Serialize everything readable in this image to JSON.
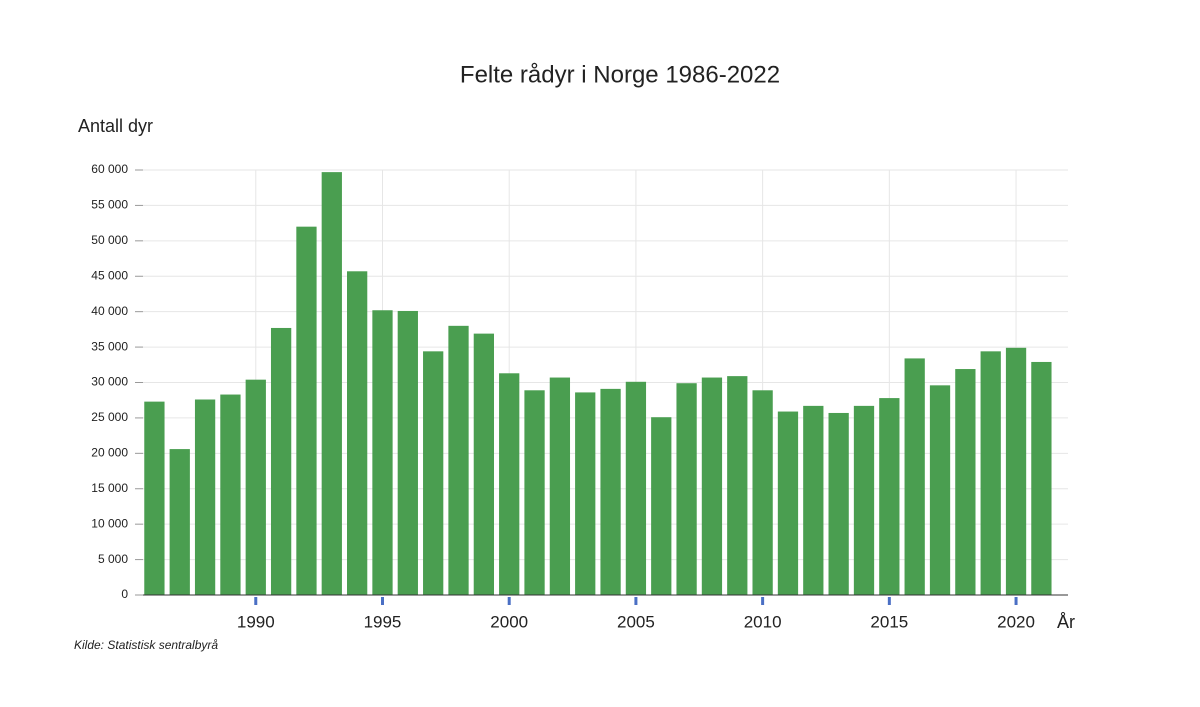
{
  "chart_data": {
    "type": "bar",
    "title": "Felte rådyr i Norge 1986-2022",
    "y_label": "Antall dyr",
    "x_label": "År",
    "source": "Kilde:  Statistisk sentralbyrå",
    "color": "#4a9e50",
    "grid": true,
    "x": [
      1986,
      1987,
      1988,
      1989,
      1990,
      1991,
      1992,
      1993,
      1994,
      1995,
      1996,
      1997,
      1998,
      1999,
      2000,
      2001,
      2002,
      2003,
      2004,
      2005,
      2006,
      2007,
      2008,
      2009,
      2010,
      2011,
      2012,
      2013,
      2014,
      2015,
      2016,
      2017,
      2018,
      2019,
      2020,
      2021
    ],
    "values": [
      27300,
      20600,
      27600,
      28300,
      30400,
      37700,
      52000,
      59700,
      45700,
      40200,
      40100,
      34400,
      38000,
      36900,
      31300,
      28900,
      30700,
      28600,
      29100,
      30100,
      25100,
      29900,
      30700,
      30900,
      28900,
      25900,
      26700,
      25700,
      26700,
      27800,
      33400,
      29600,
      31900,
      34400,
      34900,
      32900
    ],
    "xlim": [
      1985.55,
      2022.05
    ],
    "xticks": [
      1990,
      1995,
      2000,
      2005,
      2010,
      2015,
      2020
    ],
    "ylim": [
      0,
      60000
    ],
    "yticks": [
      0,
      {
        "value": 5000,
        "label": "5 000"
      },
      {
        "value": 10000,
        "label": "10 000"
      },
      {
        "value": 15000,
        "label": "15 000"
      },
      {
        "value": 20000,
        "label": "20 000"
      },
      {
        "value": 25000,
        "label": "25 000"
      },
      {
        "value": 30000,
        "label": "30 000"
      },
      {
        "value": 35000,
        "label": "35 000"
      },
      {
        "value": 40000,
        "label": "40 000"
      },
      {
        "value": 45000,
        "label": "45 000"
      },
      {
        "value": 50000,
        "label": "50 000"
      },
      {
        "value": 55000,
        "label": "55 000"
      },
      {
        "value": 60000,
        "label": "60 000"
      }
    ]
  }
}
